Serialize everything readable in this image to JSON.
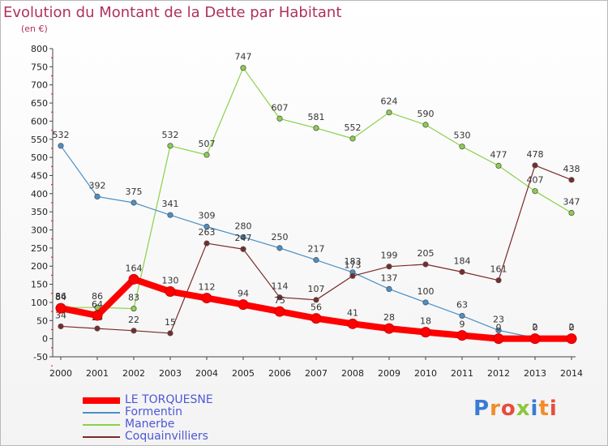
{
  "header": {
    "title": "Evolution du Montant de la Dette par Habitant",
    "subtitle": "(en €)"
  },
  "logo": "Proxiti",
  "chart_data": {
    "type": "line",
    "title": "Evolution du Montant de la Dette par Habitant",
    "subtitle": "(en €)",
    "xlabel": "",
    "ylabel": "",
    "x": [
      2000,
      2001,
      2002,
      2003,
      2004,
      2005,
      2006,
      2007,
      2008,
      2009,
      2010,
      2011,
      2012,
      2013,
      2014
    ],
    "ylim": [
      -50,
      800
    ],
    "yticks": [
      -50,
      0,
      50,
      100,
      150,
      200,
      250,
      300,
      350,
      400,
      450,
      500,
      550,
      600,
      650,
      700,
      750,
      800
    ],
    "grid": false,
    "legend_position": "bottom-left",
    "series": [
      {
        "name": "LE TORQUESNE",
        "color": "#ff0000",
        "thick": true,
        "values": [
          84,
          64,
          164,
          130,
          112,
          94,
          75,
          56,
          41,
          28,
          18,
          9,
          0,
          0,
          0
        ],
        "labels": [
          "84",
          "64",
          "164",
          "130",
          "112",
          "94",
          "75",
          "56",
          "41",
          "28",
          "18",
          "9",
          "0",
          "0",
          "0"
        ]
      },
      {
        "name": "Formentin",
        "color": "#4a90c8",
        "thick": false,
        "values": [
          532,
          392,
          375,
          341,
          309,
          280,
          250,
          217,
          183,
          137,
          100,
          63,
          23,
          2,
          2
        ],
        "labels": [
          "532",
          "392",
          "375",
          "341",
          "309",
          "280",
          "250",
          "217",
          "183",
          "137",
          "100",
          "63",
          "23",
          "2",
          "2"
        ]
      },
      {
        "name": "Manerbe",
        "color": "#8cd04a",
        "thick": false,
        "values": [
          86,
          86,
          83,
          532,
          507,
          747,
          607,
          581,
          552,
          624,
          590,
          530,
          477,
          407,
          347
        ],
        "labels": [
          "86",
          "86",
          "83",
          "532",
          "507",
          "747",
          "607",
          "581",
          "552",
          "624",
          "590",
          "530",
          "477",
          "407",
          "347"
        ]
      },
      {
        "name": "Coquainvilliers",
        "color": "#7a2a2a",
        "thick": false,
        "values": [
          34,
          28,
          22,
          15,
          263,
          247,
          114,
          107,
          173,
          199,
          205,
          184,
          161,
          478,
          438
        ],
        "labels": [
          "34",
          "28",
          "22",
          "15",
          "263",
          "247",
          "114",
          "107",
          "173",
          "199",
          "205",
          "184",
          "161",
          "478",
          "438"
        ]
      }
    ]
  }
}
